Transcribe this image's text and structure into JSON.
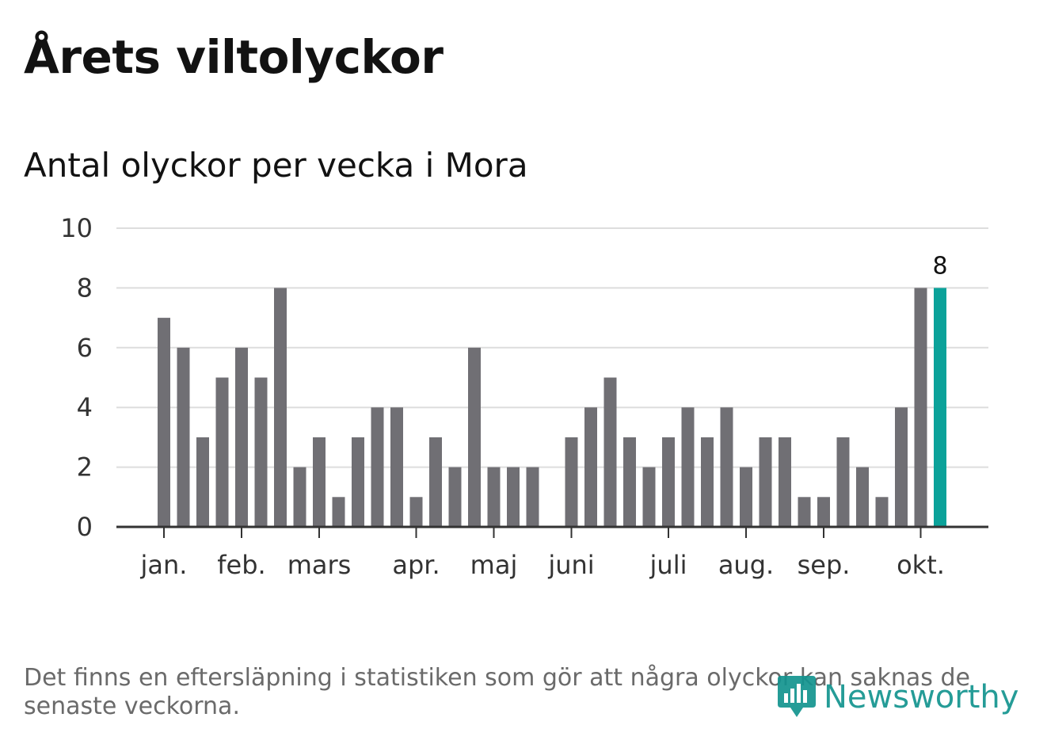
{
  "title": "Årets viltolyckor",
  "subtitle": "Antal olyckor per vecka i Mora",
  "footnote": "Det finns en eftersläpning i statistiken som gör att några olyckor kan saknas de senaste veckorna.",
  "logo": {
    "text": "Newsworthy",
    "icon": "bar-chart-speech-bubble-icon"
  },
  "colors": {
    "bar": "#706f74",
    "highlight": "#0ba29a",
    "grid": "#dddddd",
    "axis": "#333333",
    "tick_label": "#333333"
  },
  "chart_data": {
    "type": "bar",
    "title": "Antal olyckor per vecka i Mora",
    "xlabel": "",
    "ylabel": "",
    "ylim": [
      0,
      10
    ],
    "yticks": [
      0,
      2,
      4,
      6,
      8,
      10
    ],
    "grid": true,
    "weeks": [
      1,
      2,
      3,
      4,
      5,
      6,
      7,
      8,
      9,
      10,
      11,
      12,
      13,
      14,
      15,
      16,
      17,
      18,
      19,
      20,
      21,
      22,
      23,
      24,
      25,
      26,
      27,
      28,
      29,
      30,
      31,
      32,
      33,
      34,
      35,
      36,
      37,
      38,
      39,
      40,
      41
    ],
    "values": [
      7,
      6,
      3,
      5,
      6,
      5,
      8,
      2,
      3,
      1,
      3,
      4,
      4,
      1,
      3,
      2,
      6,
      2,
      2,
      2,
      0,
      3,
      4,
      5,
      3,
      2,
      3,
      4,
      3,
      4,
      2,
      3,
      3,
      1,
      1,
      3,
      2,
      1,
      4,
      8,
      8
    ],
    "highlight_index": 40,
    "highlight_label": "8",
    "month_ticks": [
      {
        "label": "jan.",
        "week": 1
      },
      {
        "label": "feb.",
        "week": 5
      },
      {
        "label": "mars",
        "week": 9
      },
      {
        "label": "apr.",
        "week": 14
      },
      {
        "label": "maj",
        "week": 18
      },
      {
        "label": "juni",
        "week": 22
      },
      {
        "label": "juli",
        "week": 27
      },
      {
        "label": "aug.",
        "week": 31
      },
      {
        "label": "sep.",
        "week": 35
      },
      {
        "label": "okt.",
        "week": 40
      }
    ]
  }
}
